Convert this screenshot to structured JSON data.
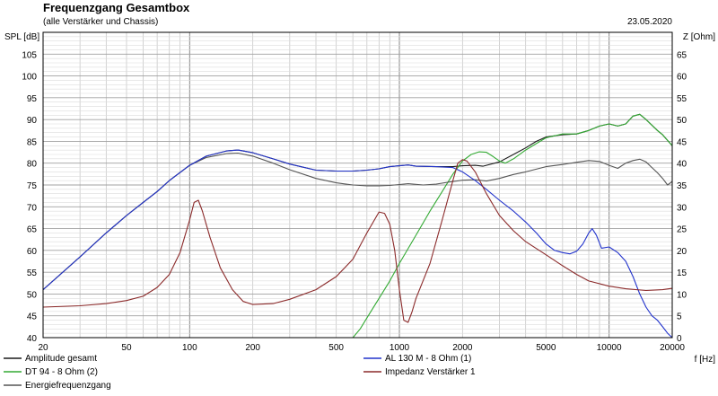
{
  "chart_data": {
    "type": "line",
    "title": "Frequenzgang Gesamtbox",
    "subtitle": "(alle Verstärker und Chassis)",
    "date": "23.05.2020",
    "ylabel_left": "SPL [dB]",
    "ylabel_right": "Z [Ohm]",
    "xlabel": "f [Hz]",
    "x_scale": "log",
    "xlim": [
      20,
      20000
    ],
    "ylim_left": [
      40,
      110
    ],
    "ylim_right": [
      0,
      70
    ],
    "grid": true,
    "legend_position": "bottom",
    "x_ticks": [
      {
        "value": 20,
        "label": "20"
      },
      {
        "value": 50,
        "label": "50"
      },
      {
        "value": 100,
        "label": "100"
      },
      {
        "value": 200,
        "label": "200"
      },
      {
        "value": 500,
        "label": "500"
      },
      {
        "value": 1000,
        "label": "1000"
      },
      {
        "value": 2000,
        "label": "2000"
      },
      {
        "value": 5000,
        "label": "5000"
      },
      {
        "value": 10000,
        "label": "10000"
      },
      {
        "value": 20000,
        "label": "20000"
      }
    ],
    "y_ticks_left": [
      "40",
      "45",
      "50",
      "55",
      "60",
      "65",
      "70",
      "75",
      "80",
      "85",
      "90",
      "95",
      "100",
      "105"
    ],
    "y_ticks_right": [
      "0",
      "5",
      "10",
      "15",
      "20",
      "25",
      "30",
      "35",
      "40",
      "45",
      "50",
      "55",
      "60",
      "65"
    ],
    "series": [
      {
        "name": "Amplitude gesamt",
        "axis": "left",
        "color": "#1a1a1a",
        "points": [
          [
            20,
            51
          ],
          [
            30,
            58.5
          ],
          [
            40,
            64
          ],
          [
            50,
            68
          ],
          [
            60,
            71
          ],
          [
            70,
            73.5
          ],
          [
            80,
            76
          ],
          [
            100,
            79.5
          ],
          [
            120,
            81.6
          ],
          [
            150,
            82.8
          ],
          [
            170,
            83
          ],
          [
            200,
            82.4
          ],
          [
            250,
            81
          ],
          [
            300,
            79.8
          ],
          [
            400,
            78.4
          ],
          [
            500,
            78.2
          ],
          [
            600,
            78.2
          ],
          [
            700,
            78.4
          ],
          [
            800,
            78.7
          ],
          [
            900,
            79.2
          ],
          [
            1000,
            79.4
          ],
          [
            1100,
            79.6
          ],
          [
            1200,
            79.3
          ],
          [
            1500,
            79.2
          ],
          [
            1800,
            79.2
          ],
          [
            2000,
            79.4
          ],
          [
            2300,
            79.5
          ],
          [
            2500,
            79.3
          ],
          [
            3000,
            80.3
          ],
          [
            3500,
            82
          ],
          [
            4000,
            83.5
          ],
          [
            4500,
            85
          ],
          [
            5000,
            86
          ],
          [
            6000,
            86.5
          ],
          [
            7000,
            86.7
          ],
          [
            8000,
            87.5
          ],
          [
            9000,
            88.5
          ],
          [
            10000,
            89
          ],
          [
            11000,
            88.5
          ],
          [
            12000,
            89
          ],
          [
            13000,
            90.8
          ],
          [
            14000,
            91.2
          ],
          [
            15000,
            90
          ],
          [
            17000,
            87.5
          ],
          [
            18000,
            86.5
          ],
          [
            20000,
            84
          ]
        ]
      },
      {
        "name": "DT 94 - 8 Ohm (2)",
        "axis": "left",
        "color": "#33aa33",
        "points": [
          [
            20,
            40
          ],
          [
            600,
            40
          ],
          [
            650,
            42
          ],
          [
            700,
            44.5
          ],
          [
            800,
            49
          ],
          [
            900,
            53
          ],
          [
            1000,
            57
          ],
          [
            1200,
            63.5
          ],
          [
            1400,
            69
          ],
          [
            1600,
            73.5
          ],
          [
            1800,
            77.5
          ],
          [
            2000,
            80.5
          ],
          [
            2200,
            82
          ],
          [
            2400,
            82.6
          ],
          [
            2600,
            82.5
          ],
          [
            2800,
            81.5
          ],
          [
            3000,
            80.5
          ],
          [
            3200,
            80
          ],
          [
            3500,
            81
          ],
          [
            4000,
            83
          ],
          [
            4500,
            84.5
          ],
          [
            5000,
            85.8
          ],
          [
            6000,
            86.7
          ],
          [
            7000,
            86.7
          ],
          [
            8000,
            87.5
          ],
          [
            9000,
            88.5
          ],
          [
            10000,
            89
          ],
          [
            11000,
            88.5
          ],
          [
            12000,
            89
          ],
          [
            13000,
            90.8
          ],
          [
            14000,
            91.2
          ],
          [
            15000,
            90
          ],
          [
            17000,
            87.5
          ],
          [
            18000,
            86.5
          ],
          [
            20000,
            84
          ]
        ]
      },
      {
        "name": "Energiefrequenzgang",
        "axis": "left",
        "color": "#555555",
        "points": [
          [
            20,
            51
          ],
          [
            30,
            58.5
          ],
          [
            40,
            64
          ],
          [
            50,
            68
          ],
          [
            60,
            71
          ],
          [
            70,
            73.5
          ],
          [
            80,
            76
          ],
          [
            100,
            79.5
          ],
          [
            120,
            81.3
          ],
          [
            150,
            82.2
          ],
          [
            170,
            82.3
          ],
          [
            200,
            81.6
          ],
          [
            250,
            80
          ],
          [
            300,
            78.5
          ],
          [
            400,
            76.5
          ],
          [
            500,
            75.5
          ],
          [
            600,
            75
          ],
          [
            700,
            74.8
          ],
          [
            800,
            74.8
          ],
          [
            900,
            74.9
          ],
          [
            1000,
            75.1
          ],
          [
            1100,
            75.3
          ],
          [
            1300,
            75
          ],
          [
            1500,
            75.2
          ],
          [
            1800,
            75.8
          ],
          [
            2000,
            76.1
          ],
          [
            2300,
            76.2
          ],
          [
            2600,
            75.9
          ],
          [
            3000,
            76.5
          ],
          [
            3500,
            77.4
          ],
          [
            4000,
            78
          ],
          [
            5000,
            79.2
          ],
          [
            6000,
            79.7
          ],
          [
            7000,
            80.2
          ],
          [
            8000,
            80.6
          ],
          [
            9000,
            80.4
          ],
          [
            10000,
            79.5
          ],
          [
            11000,
            78.8
          ],
          [
            12000,
            80
          ],
          [
            13000,
            80.6
          ],
          [
            14000,
            80.9
          ],
          [
            15000,
            80.3
          ],
          [
            16000,
            79
          ],
          [
            17000,
            77.8
          ],
          [
            18000,
            76.5
          ],
          [
            19000,
            75
          ],
          [
            20000,
            75.8
          ]
        ]
      },
      {
        "name": "AL 130 M - 8 Ohm (1)",
        "axis": "left",
        "color": "#2233cc",
        "points": [
          [
            20,
            51
          ],
          [
            30,
            58.5
          ],
          [
            40,
            64
          ],
          [
            50,
            68
          ],
          [
            60,
            71
          ],
          [
            70,
            73.5
          ],
          [
            80,
            76
          ],
          [
            100,
            79.5
          ],
          [
            120,
            81.6
          ],
          [
            150,
            82.8
          ],
          [
            170,
            83
          ],
          [
            200,
            82.4
          ],
          [
            250,
            81
          ],
          [
            300,
            79.8
          ],
          [
            400,
            78.4
          ],
          [
            500,
            78.2
          ],
          [
            600,
            78.2
          ],
          [
            700,
            78.4
          ],
          [
            800,
            78.7
          ],
          [
            900,
            79.2
          ],
          [
            1000,
            79.4
          ],
          [
            1100,
            79.6
          ],
          [
            1200,
            79.3
          ],
          [
            1500,
            79.2
          ],
          [
            1800,
            79
          ],
          [
            2000,
            78
          ],
          [
            2300,
            76
          ],
          [
            2600,
            74
          ],
          [
            3000,
            71.5
          ],
          [
            3500,
            69
          ],
          [
            4000,
            66.5
          ],
          [
            4500,
            64
          ],
          [
            5000,
            61.5
          ],
          [
            5500,
            60
          ],
          [
            6000,
            59.5
          ],
          [
            6500,
            59.2
          ],
          [
            7000,
            59.8
          ],
          [
            7500,
            61.5
          ],
          [
            8000,
            64
          ],
          [
            8300,
            65
          ],
          [
            8700,
            63.5
          ],
          [
            9200,
            60.5
          ],
          [
            10000,
            60.8
          ],
          [
            11000,
            59.5
          ],
          [
            12000,
            57.5
          ],
          [
            13000,
            54
          ],
          [
            14000,
            50
          ],
          [
            15000,
            47
          ],
          [
            16000,
            45
          ],
          [
            17000,
            44
          ],
          [
            18000,
            42.5
          ],
          [
            19000,
            41
          ],
          [
            20000,
            40
          ]
        ]
      },
      {
        "name": "Impedanz Verstärker 1",
        "axis": "right",
        "color": "#8b2a2a",
        "points": [
          [
            20,
            7
          ],
          [
            30,
            7.3
          ],
          [
            40,
            7.8
          ],
          [
            50,
            8.5
          ],
          [
            60,
            9.5
          ],
          [
            70,
            11.5
          ],
          [
            80,
            14.5
          ],
          [
            90,
            19.5
          ],
          [
            100,
            27
          ],
          [
            105,
            31
          ],
          [
            110,
            31.5
          ],
          [
            115,
            29
          ],
          [
            125,
            23
          ],
          [
            140,
            16
          ],
          [
            160,
            11
          ],
          [
            180,
            8.3
          ],
          [
            200,
            7.6
          ],
          [
            250,
            7.8
          ],
          [
            300,
            8.8
          ],
          [
            400,
            11
          ],
          [
            500,
            14
          ],
          [
            600,
            18
          ],
          [
            700,
            24
          ],
          [
            800,
            28.8
          ],
          [
            850,
            28.5
          ],
          [
            900,
            26
          ],
          [
            950,
            20
          ],
          [
            1000,
            11
          ],
          [
            1050,
            4
          ],
          [
            1100,
            3.5
          ],
          [
            1150,
            6
          ],
          [
            1200,
            9
          ],
          [
            1400,
            17
          ],
          [
            1600,
            27
          ],
          [
            1800,
            36
          ],
          [
            1900,
            40
          ],
          [
            2000,
            40.8
          ],
          [
            2100,
            40.5
          ],
          [
            2300,
            38
          ],
          [
            2600,
            33
          ],
          [
            3000,
            28
          ],
          [
            3500,
            24.5
          ],
          [
            4000,
            22
          ],
          [
            5000,
            19
          ],
          [
            6000,
            16.5
          ],
          [
            7000,
            14.5
          ],
          [
            8000,
            13
          ],
          [
            10000,
            11.8
          ],
          [
            12000,
            11.2
          ],
          [
            15000,
            10.8
          ],
          [
            18000,
            11
          ],
          [
            20000,
            11.3
          ]
        ]
      }
    ]
  }
}
